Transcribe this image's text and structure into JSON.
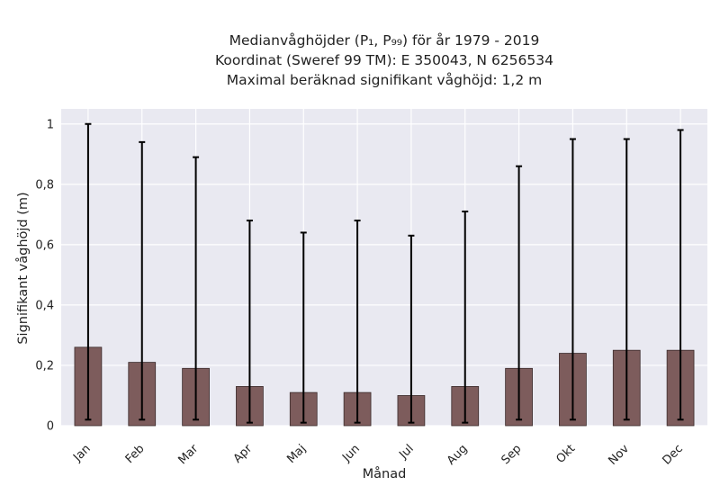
{
  "chart_data": {
    "type": "bar",
    "title_lines": [
      "Medianvåghöjder (P₁, P₉₉) för år 1979 - 2019",
      "Koordinat (Sweref 99 TM): E 350043, N 6256534",
      "Maximal beräknad signifikant våghöjd: 1,2 m"
    ],
    "xlabel": "Månad",
    "ylabel": "Signifikant våghöjd (m)",
    "categories": [
      "Jan",
      "Feb",
      "Mar",
      "Apr",
      "Maj",
      "Jun",
      "Jul",
      "Aug",
      "Sep",
      "Okt",
      "Nov",
      "Dec"
    ],
    "values": [
      0.26,
      0.21,
      0.19,
      0.13,
      0.11,
      0.11,
      0.1,
      0.13,
      0.19,
      0.24,
      0.25,
      0.25
    ],
    "p1": [
      0.02,
      0.02,
      0.02,
      0.01,
      0.01,
      0.01,
      0.01,
      0.01,
      0.02,
      0.02,
      0.02,
      0.02
    ],
    "p99": [
      1.0,
      0.94,
      0.89,
      0.68,
      0.64,
      0.68,
      0.63,
      0.71,
      0.86,
      0.95,
      0.95,
      0.98
    ],
    "ylim": [
      0,
      1.05
    ],
    "yticks": [
      0,
      0.2,
      0.4,
      0.6,
      0.8,
      1
    ],
    "ytick_labels": [
      "0",
      "0,2",
      "0,4",
      "0,6",
      "0,8",
      "1"
    ],
    "grid": true,
    "colors": {
      "bar": "#7d5c5c",
      "bar_edge": "#3a2a2a",
      "error_bar": "#000000",
      "plot_background": "#e9e9f1",
      "grid": "#ffffff"
    }
  }
}
